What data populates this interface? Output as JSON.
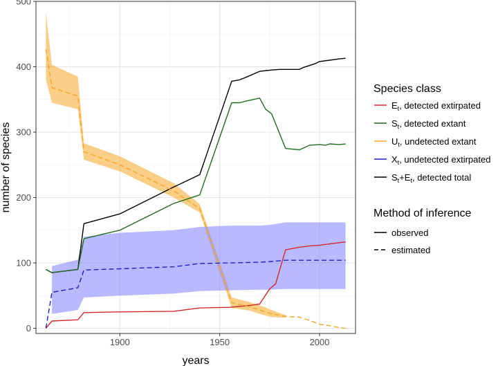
{
  "chart_data": {
    "type": "line",
    "title": "",
    "xlabel": "years",
    "ylabel": "number of species",
    "xlim": [
      1858,
      2018
    ],
    "ylim": [
      -8,
      500
    ],
    "xticks": [
      1900,
      1950,
      2000
    ],
    "yticks": [
      0,
      100,
      200,
      300,
      400,
      500
    ],
    "grid": true,
    "legend": {
      "placement": "right",
      "class_title": "Species class",
      "class_entries": [
        {
          "id": "E",
          "main": "E",
          "sub": "t",
          "rest": ", detected extirpated",
          "color": "#d62728"
        },
        {
          "id": "S",
          "main": "S",
          "sub": "t",
          "rest": ", detected extant",
          "color": "#1f6b1f"
        },
        {
          "id": "U",
          "main": "U",
          "sub": "t",
          "rest": ", undetected extant",
          "color": "#f5a623"
        },
        {
          "id": "X",
          "main": "X",
          "sub": "t",
          "rest": ", undetected extirpated",
          "color": "#1f1fcc"
        },
        {
          "id": "T",
          "main": "S",
          "sub": "t",
          "mid": "+E",
          "sub2": "t",
          "rest": ", detected total",
          "color": "#000000"
        }
      ],
      "method_title": "Method of inference",
      "method_entries": [
        {
          "label": "observed",
          "style": "solid"
        },
        {
          "label": "estimated",
          "style": "dashed"
        }
      ]
    },
    "series": [
      {
        "name": "S_t+E_t, detected total",
        "style": "solid",
        "color": "#000000",
        "x": [
          1863,
          1866,
          1879,
          1882,
          1900,
          1927,
          1940,
          1956,
          1960,
          1964,
          1970,
          1976,
          1980,
          1985,
          1990,
          1992,
          1998,
          2000,
          2005,
          2010,
          2013
        ],
        "y": [
          90,
          85,
          90,
          160,
          175,
          216,
          235,
          378,
          380,
          385,
          393,
          395,
          396,
          396,
          396,
          399,
          405,
          408,
          410,
          412,
          413
        ]
      },
      {
        "name": "S_t, detected extant",
        "style": "solid",
        "color": "#1f6b1f",
        "x": [
          1863,
          1866,
          1879,
          1882,
          1900,
          1927,
          1940,
          1956,
          1960,
          1964,
          1970,
          1973,
          1976,
          1983,
          1990,
          1995,
          2000,
          2003,
          2005,
          2010,
          2013
        ],
        "y": [
          90,
          85,
          90,
          137,
          150,
          191,
          204,
          345,
          345,
          348,
          352,
          335,
          328,
          275,
          273,
          280,
          281,
          280,
          282,
          281,
          282
        ]
      },
      {
        "name": "E_t, detected extirpated",
        "style": "solid",
        "color": "#d62728",
        "x": [
          1863,
          1866,
          1879,
          1882,
          1900,
          1927,
          1940,
          1955,
          1965,
          1970,
          1975,
          1978,
          1983,
          1990,
          1995,
          2000,
          2005,
          2010,
          2013
        ],
        "y": [
          0,
          11,
          13,
          24,
          25,
          26,
          31,
          32,
          35,
          37,
          60,
          68,
          120,
          124,
          126,
          127,
          129,
          131,
          132
        ]
      },
      {
        "name": "U_t, undetected extant",
        "style": "dashed",
        "color": "#f5a623",
        "x": [
          1863,
          1866,
          1879,
          1882,
          1900,
          1927,
          1940,
          1956,
          1965,
          1970,
          1976,
          1983,
          1990,
          1995,
          2000,
          2005,
          2010,
          2013
        ],
        "y": [
          427,
          368,
          355,
          270,
          250,
          210,
          183,
          39,
          33,
          28,
          22,
          18,
          17,
          12,
          6,
          4,
          1,
          0
        ]
      },
      {
        "name": "X_t, undetected extirpated",
        "style": "dashed",
        "color": "#1f1fcc",
        "x": [
          1863,
          1866,
          1879,
          1882,
          1900,
          1927,
          1940,
          1955,
          1970,
          1975,
          1983,
          2000,
          2013
        ],
        "y": [
          0,
          55,
          62,
          89,
          91,
          94,
          99,
          100,
          101,
          102,
          104,
          104,
          104
        ]
      }
    ],
    "bands": [
      {
        "name": "U_t interval",
        "color": "#f5a623",
        "x": [
          1863,
          1866,
          1879,
          1882,
          1900,
          1927,
          1940,
          1956,
          1965,
          1970,
          1976,
          1983
        ],
        "lower": [
          380,
          345,
          335,
          258,
          240,
          200,
          177,
          31,
          27,
          22,
          17,
          16
        ],
        "upper": [
          483,
          403,
          385,
          283,
          263,
          222,
          190,
          47,
          40,
          35,
          28,
          20
        ]
      },
      {
        "name": "X_t interval",
        "color": "#8080ff",
        "x": [
          1866,
          1879,
          1882,
          1900,
          1927,
          1940,
          1955,
          1970,
          1975,
          1983,
          2013
        ],
        "lower": [
          22,
          28,
          47,
          50,
          53,
          57,
          58,
          59,
          59,
          60,
          60
        ],
        "upper": [
          95,
          105,
          140,
          146,
          150,
          155,
          157,
          157,
          158,
          162,
          162
        ]
      }
    ]
  }
}
